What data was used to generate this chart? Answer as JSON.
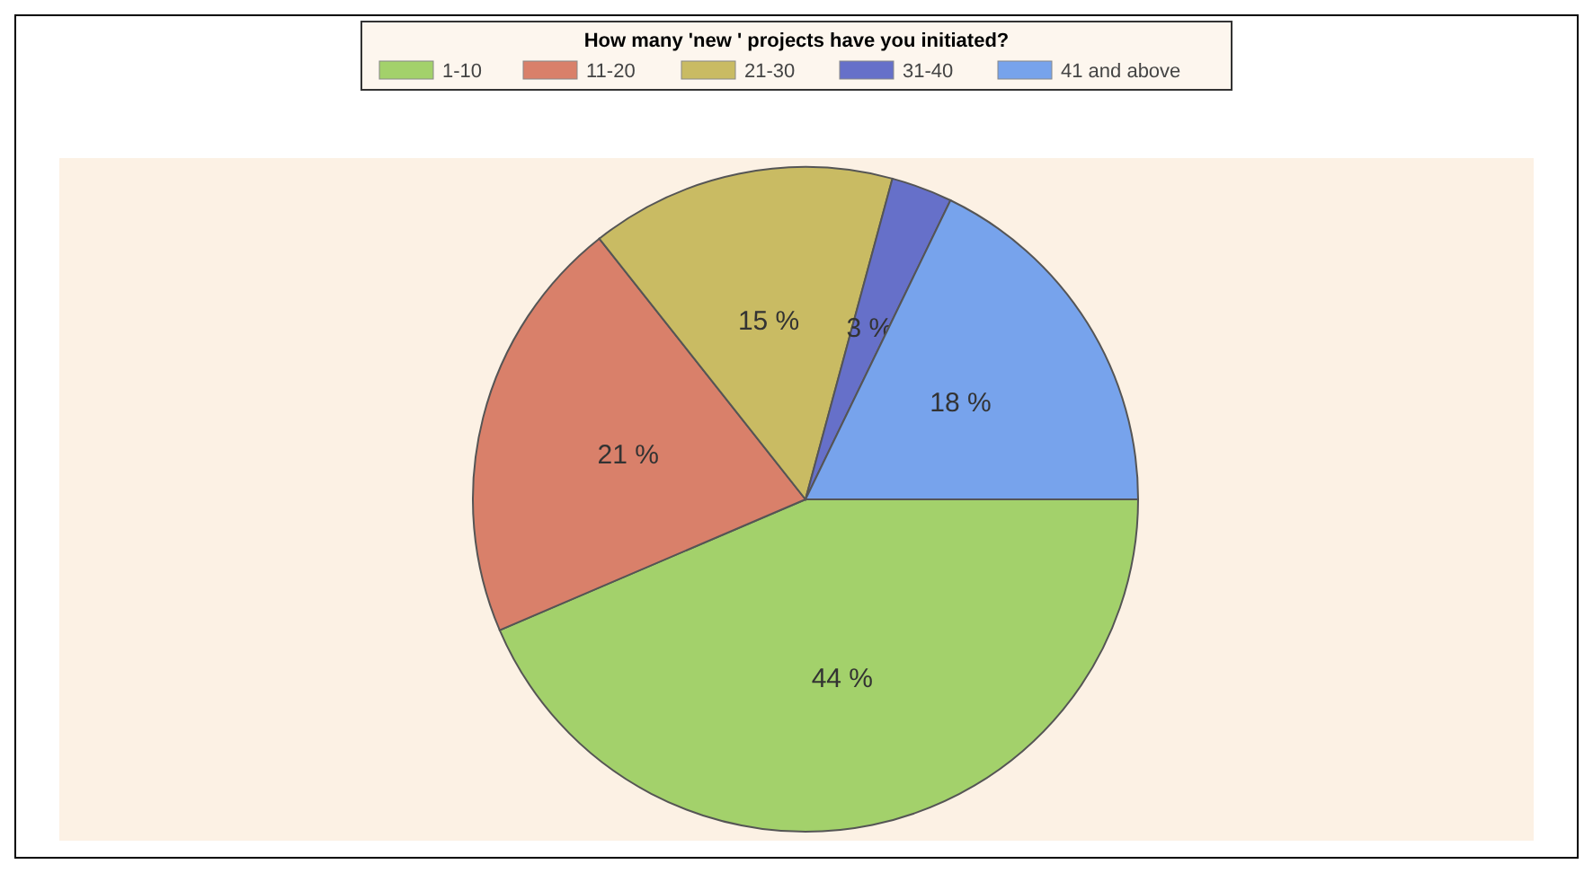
{
  "chart_data": {
    "type": "pie",
    "legend_title": "How many 'new ' projects have you initiated?",
    "categories": [
      "1-10",
      "11-20",
      "21-30",
      "31-40",
      "41 and above"
    ],
    "values": [
      44,
      21,
      15,
      3,
      18
    ],
    "value_labels": [
      "44 %",
      "21 %",
      "15 %",
      "3 %",
      "18 %"
    ],
    "colors": [
      "#a3d16b",
      "#d9806a",
      "#c9bb63",
      "#6670c9",
      "#77a3ec"
    ],
    "legend": "top"
  }
}
